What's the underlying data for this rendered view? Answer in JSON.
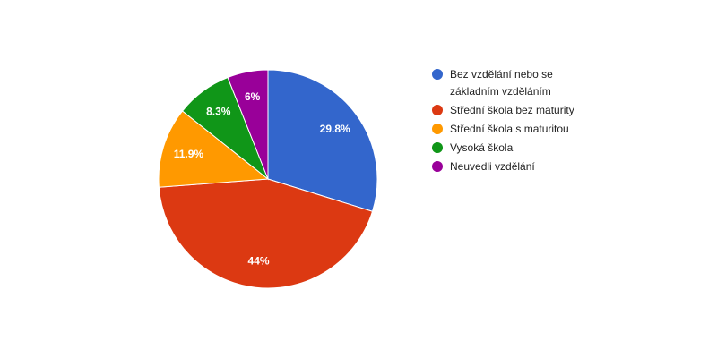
{
  "chart_data": {
    "type": "pie",
    "categories": [
      "Bez vzdělání nebo se základním vzděláním",
      "Střední škola bez maturity",
      "Střední škola s maturitou",
      "Vysoká škola",
      "Neuvedli vzdělání"
    ],
    "values": [
      29.8,
      44,
      11.9,
      8.3,
      6
    ],
    "value_labels": [
      "29.8%",
      "44%",
      "11.9%",
      "8.3%",
      "6%"
    ],
    "colors": [
      "#3366cc",
      "#dc3912",
      "#ff9900",
      "#109618",
      "#990099"
    ],
    "legend": "right"
  }
}
